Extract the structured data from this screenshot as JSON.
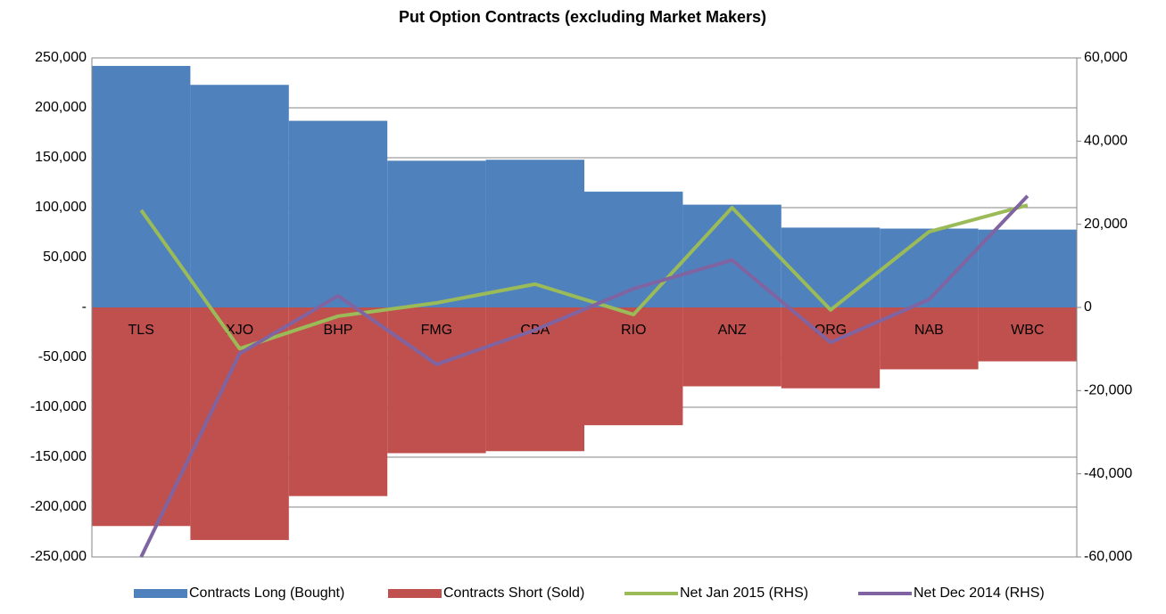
{
  "chart_data": {
    "type": "combo",
    "title": "Put Option Contracts (excluding Market Makers)",
    "categories": [
      "TLS",
      "XJO",
      "BHP",
      "FMG",
      "CBA",
      "RIO",
      "ANZ",
      "ORG",
      "NAB",
      "WBC"
    ],
    "series": [
      {
        "name": "Contracts Long (Bought)",
        "type": "bar",
        "color": "#4f81bd",
        "values": [
          242000,
          223000,
          187000,
          147000,
          148000,
          116000,
          103000,
          80000,
          79000,
          78000
        ]
      },
      {
        "name": "Contracts Short (Sold)",
        "type": "bar",
        "color": "#c0504d",
        "values": [
          -219000,
          -233000,
          -189000,
          -146000,
          -144000,
          -118000,
          -79000,
          -81000,
          -62000,
          -54000
        ]
      },
      {
        "name": "Net Jan 2015 (RHS)",
        "type": "line",
        "axis": "y2",
        "color": "#9bbb59",
        "values": [
          23400,
          -9900,
          -2100,
          1100,
          5600,
          -1700,
          24000,
          -600,
          18200,
          24600
        ]
      },
      {
        "name": "Net Dec 2014 (RHS)",
        "type": "line",
        "axis": "y2",
        "color": "#8064a2",
        "values": [
          -60000,
          -11100,
          2800,
          -13700,
          -5400,
          4500,
          11400,
          -8400,
          1900,
          26800
        ]
      }
    ],
    "ylim": [
      -250000,
      250000
    ],
    "yticks": [
      {
        "value": -250000,
        "label": "-250,000"
      },
      {
        "value": -200000,
        "label": "-200,000"
      },
      {
        "value": -150000,
        "label": "-150,000"
      },
      {
        "value": -100000,
        "label": "-100,000"
      },
      {
        "value": -50000,
        "label": "-50,000"
      },
      {
        "value": 0,
        "label": "-"
      },
      {
        "value": 50000,
        "label": "50,000"
      },
      {
        "value": 100000,
        "label": "100,000"
      },
      {
        "value": 150000,
        "label": "150,000"
      },
      {
        "value": 200000,
        "label": "200,000"
      },
      {
        "value": 250000,
        "label": "250,000"
      }
    ],
    "y2lim": [
      -60000,
      60000
    ],
    "y2ticks": [
      {
        "value": -60000,
        "label": "-60,000"
      },
      {
        "value": -40000,
        "label": "-40,000"
      },
      {
        "value": -20000,
        "label": "-20,000"
      },
      0,
      {
        "value": 20000,
        "label": "20,000"
      },
      {
        "value": 40000,
        "label": "40,000"
      },
      {
        "value": 60000,
        "label": "60,000"
      }
    ],
    "grid": true,
    "legend": "bottom"
  }
}
